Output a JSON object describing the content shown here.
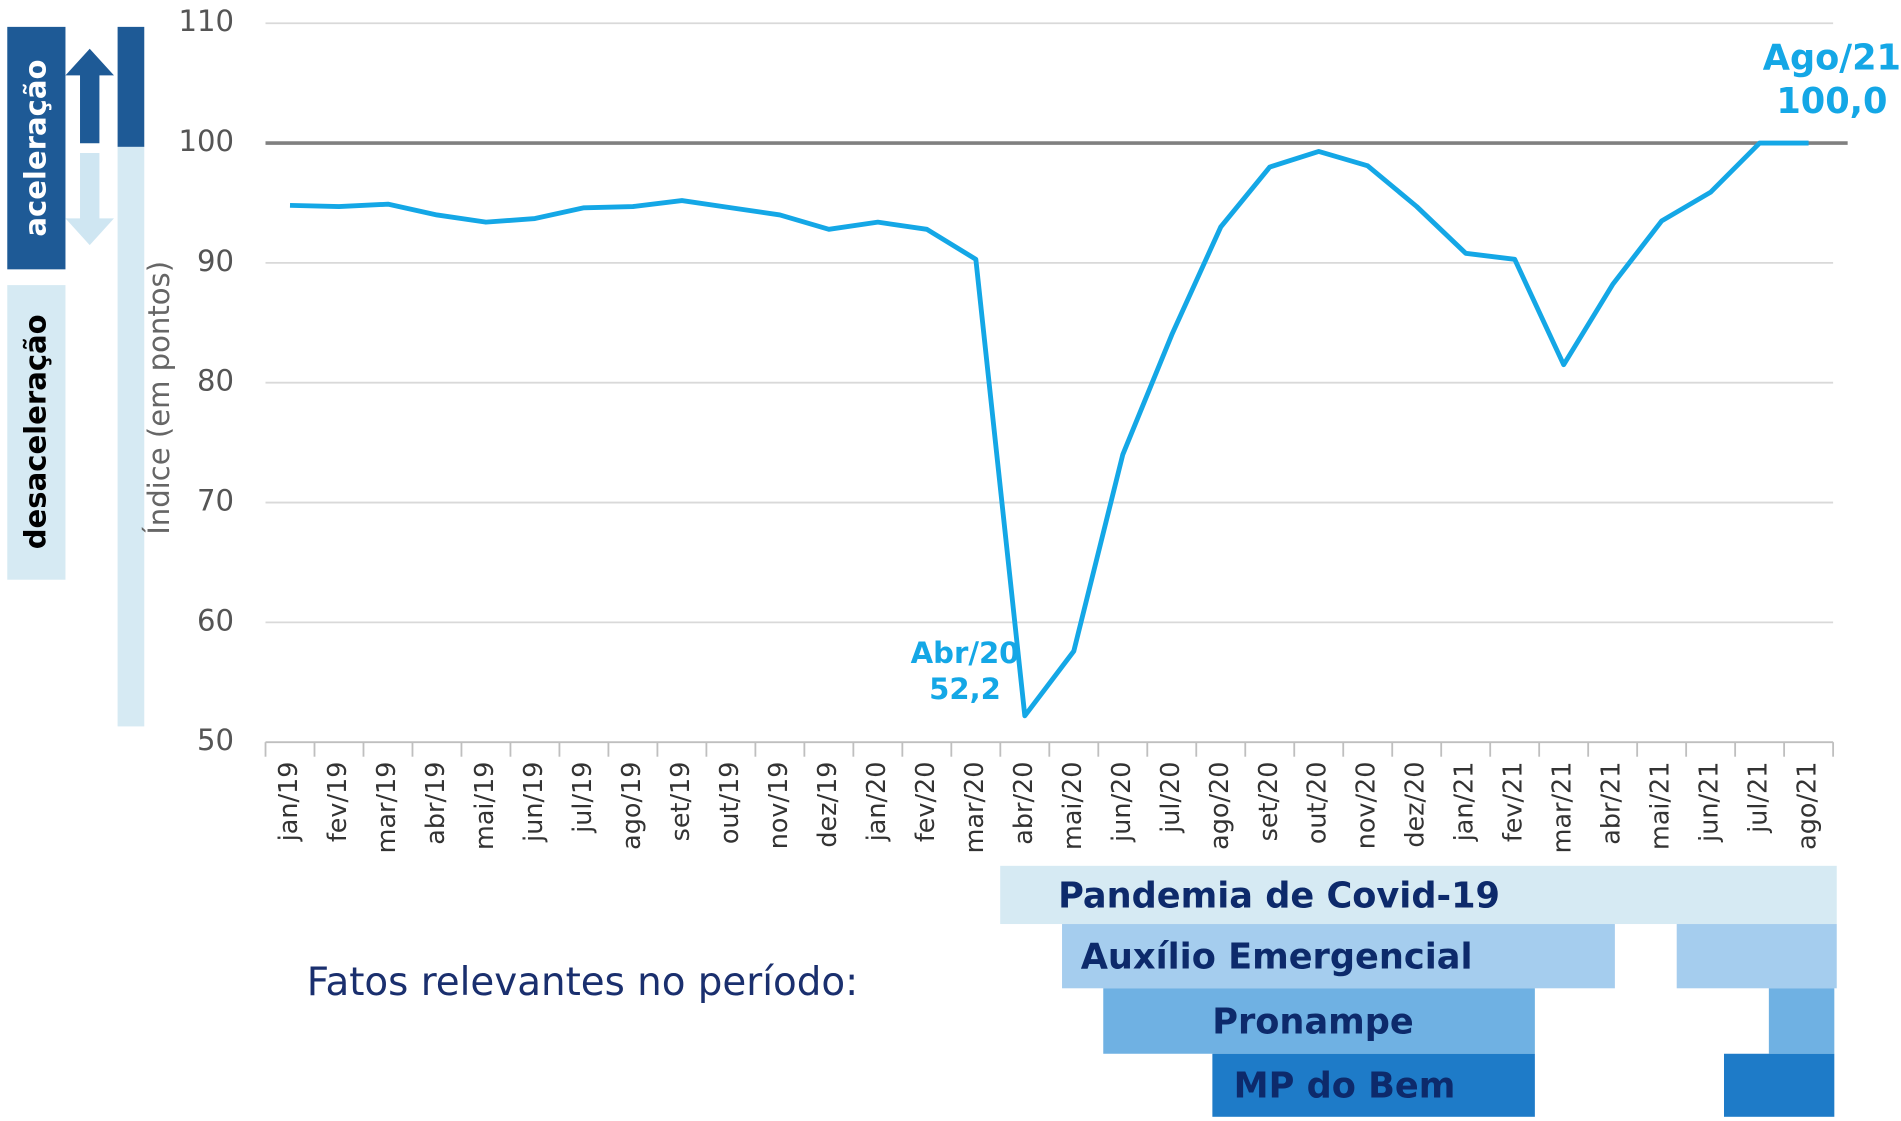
{
  "chart_data": {
    "type": "line",
    "y_axis_label": "Índice (em pontos)",
    "categories": [
      "jan/19",
      "fev/19",
      "mar/19",
      "abr/19",
      "mai/19",
      "jun/19",
      "jul/19",
      "ago/19",
      "set/19",
      "out/19",
      "nov/19",
      "dez/19",
      "jan/20",
      "fev/20",
      "mar/20",
      "abr/20",
      "mai/20",
      "jun/20",
      "jul/20",
      "ago/20",
      "set/20",
      "out/20",
      "nov/20",
      "dez/20",
      "jan/21",
      "fev/21",
      "mar/21",
      "abr/21",
      "mai/21",
      "jun/21",
      "jul/21",
      "ago/21"
    ],
    "series": [
      {
        "name": "Índice",
        "color": "#14a7e6",
        "values": [
          94.8,
          94.7,
          94.9,
          94.0,
          93.4,
          93.7,
          94.6,
          94.7,
          95.2,
          94.6,
          94.0,
          92.8,
          93.4,
          92.8,
          90.3,
          52.2,
          57.6,
          74.0,
          84.0,
          93.0,
          98.0,
          99.3,
          98.1,
          94.7,
          90.8,
          90.3,
          81.5,
          88.2,
          93.5,
          95.9,
          100.0,
          100.0
        ]
      }
    ],
    "ylim": [
      50,
      110
    ],
    "yticks": [
      50,
      60,
      70,
      80,
      90,
      100,
      110
    ],
    "grid": true,
    "reference_line": 100,
    "annotations": [
      {
        "lines": [
          "Abr/20",
          "52,2"
        ]
      },
      {
        "lines": [
          "Ago/21",
          "100,0"
        ]
      }
    ],
    "side_labels": [
      "aceleração",
      "desaceleração"
    ],
    "events_title": "Fatos relevantes no período:",
    "events": [
      "Pandemia de Covid-19",
      "Auxílio Emergencial",
      "Pronampe",
      "MP do Bem"
    ]
  }
}
